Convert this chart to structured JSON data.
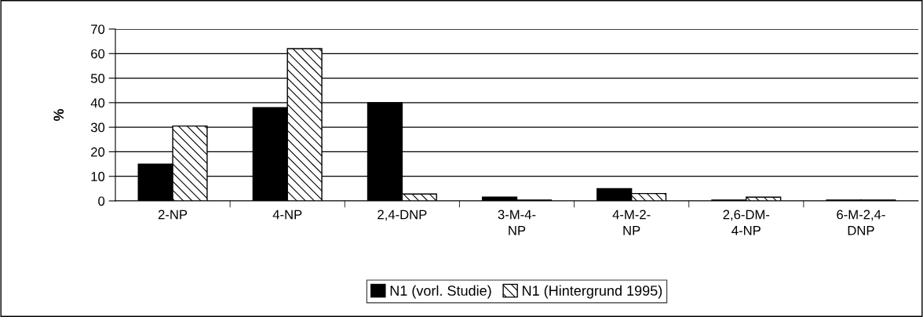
{
  "chart_data": {
    "type": "bar",
    "ylabel": "%",
    "categories": [
      "2-NP",
      "4-NP",
      "2,4-DNP",
      "3-M-4-\nNP",
      "4-M-2-\nNP",
      "2,6-DM-\n4-NP",
      "6-M-2,4-\nDNP"
    ],
    "series": [
      {
        "name": "N1 (vorl. Studie)",
        "color": "#000000",
        "values": [
          15,
          38,
          40,
          1.5,
          5,
          0.3,
          0.3
        ]
      },
      {
        "name": "N1 (Hintergrund 1995)",
        "color": "#000000",
        "values": [
          30.5,
          62,
          2.8,
          0.3,
          3,
          1.5,
          0.3
        ]
      }
    ],
    "ylim": [
      0,
      70
    ],
    "yticks": [
      0,
      10,
      20,
      30,
      40,
      50,
      60,
      70
    ],
    "grid": "y",
    "legend": "bottom"
  }
}
